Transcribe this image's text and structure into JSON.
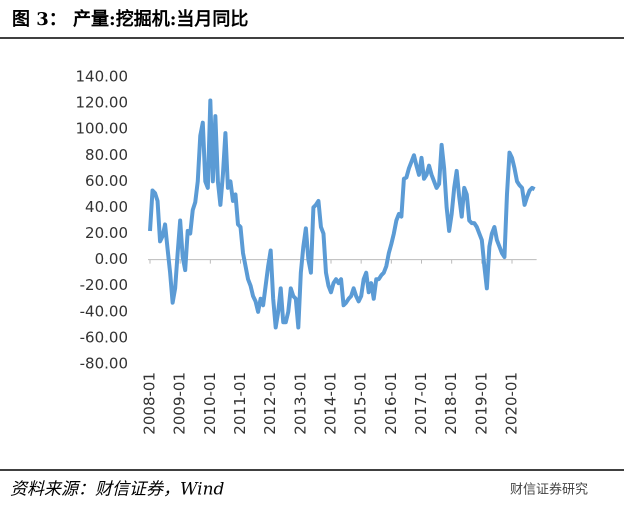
{
  "chart_data": {
    "type": "line",
    "title": "图 3：  产量:挖掘机:当月同比",
    "source": "资料来源：财信证券，Wind",
    "watermark": "财信证券研究",
    "categories": [
      "2008-01",
      null,
      null,
      null,
      null,
      null,
      null,
      null,
      null,
      null,
      null,
      null,
      "2009-01",
      null,
      null,
      null,
      null,
      null,
      null,
      null,
      null,
      null,
      null,
      null,
      "2010-01",
      null,
      null,
      null,
      null,
      null,
      null,
      null,
      null,
      null,
      null,
      null,
      "2011-01",
      null,
      null,
      null,
      null,
      null,
      null,
      null,
      null,
      null,
      null,
      null,
      "2012-01",
      null,
      null,
      null,
      null,
      null,
      null,
      null,
      null,
      null,
      null,
      null,
      "2013-01",
      null,
      null,
      null,
      null,
      null,
      null,
      null,
      null,
      null,
      null,
      null,
      "2014-01",
      null,
      null,
      null,
      null,
      null,
      null,
      null,
      null,
      null,
      null,
      null,
      "2015-01",
      null,
      null,
      null,
      null,
      null,
      null,
      null,
      null,
      null,
      null,
      null,
      "2016-01",
      null,
      null,
      null,
      null,
      null,
      null,
      null,
      null,
      null,
      null,
      null,
      "2017-01",
      null,
      null,
      null,
      null,
      null,
      null,
      null,
      null,
      null,
      null,
      null,
      "2018-01",
      null,
      null,
      null,
      null,
      null,
      null,
      null,
      null,
      null,
      null,
      null,
      "2019-01",
      null,
      null,
      null,
      null,
      null,
      null,
      null,
      null,
      null,
      null,
      null,
      "2020-01",
      null,
      null,
      null,
      null,
      null,
      null,
      null,
      null,
      null
    ],
    "series": [
      {
        "name": "产量:挖掘机:当月同比",
        "color": "#5b9bd5",
        "values": [
          22,
          53,
          51,
          45,
          14,
          18,
          27,
          8,
          -10,
          -33,
          -22,
          5,
          30,
          2,
          -8,
          22,
          20,
          38,
          44,
          60,
          95,
          105,
          60,
          55,
          122,
          60,
          110,
          60,
          42,
          65,
          97,
          55,
          60,
          45,
          50,
          27,
          25,
          5,
          -5,
          -15,
          -20,
          -28,
          -32,
          -40,
          -30,
          -35,
          -20,
          -5,
          7,
          -30,
          -52,
          -40,
          -22,
          -48,
          -48,
          -40,
          -22,
          -28,
          -30,
          -52,
          -10,
          10,
          24,
          0,
          -10,
          40,
          42,
          45,
          25,
          20,
          -10,
          -20,
          -25,
          -18,
          -15,
          -18,
          -15,
          -35,
          -33,
          -30,
          -28,
          -22,
          -28,
          -32,
          -28,
          -15,
          -10,
          -25,
          -18,
          -30,
          -15,
          -15,
          -12,
          -10,
          -5,
          5,
          12,
          20,
          30,
          35,
          33,
          62,
          63,
          70,
          75,
          80,
          72,
          65,
          78,
          62,
          65,
          72,
          65,
          60,
          55,
          58,
          88,
          70,
          40,
          22,
          35,
          55,
          68,
          48,
          33,
          55,
          50,
          30,
          28,
          28,
          25,
          20,
          15,
          -5,
          -22,
          10,
          20,
          25,
          15,
          10,
          5,
          2,
          50,
          82,
          78,
          70,
          60,
          57,
          55,
          42,
          48,
          53,
          55,
          54
        ]
      }
    ],
    "ylim": [
      -80,
      140
    ],
    "yticks": [
      {
        "value": -80,
        "label": "-80.00"
      },
      {
        "value": -60,
        "label": "-60.00"
      },
      {
        "value": -40,
        "label": "-40.00"
      },
      {
        "value": -20,
        "label": "-20.00"
      },
      {
        "value": 0,
        "label": "0.00"
      },
      {
        "value": 20,
        "label": "20.00"
      },
      {
        "value": 40,
        "label": "40.00"
      },
      {
        "value": 60,
        "label": "60.00"
      },
      {
        "value": 80,
        "label": "80.00"
      },
      {
        "value": 100,
        "label": "100.00"
      },
      {
        "value": 120,
        "label": "120.00"
      },
      {
        "value": 140,
        "label": "140.00"
      }
    ],
    "grid": false
  }
}
